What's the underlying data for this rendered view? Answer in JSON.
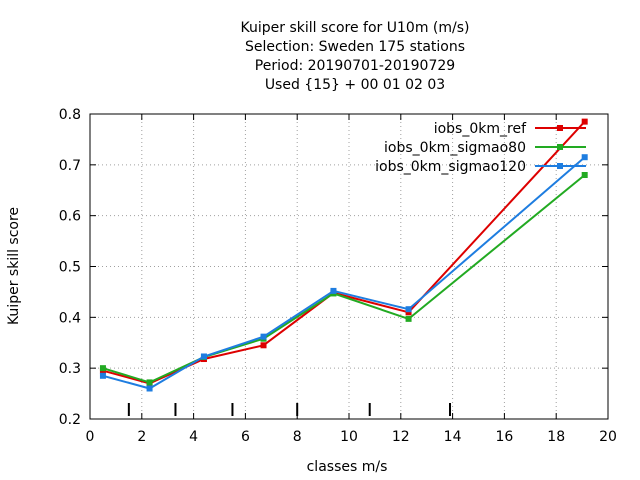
{
  "chart_data": {
    "type": "line",
    "title_lines": [
      "Kuiper skill score  for U10m (m/s)",
      "Selection: Sweden    175 stations",
      "Period: 20190701-20190729",
      "Used {15} + 00 01 02 03"
    ],
    "xlabel": "classes m/s",
    "ylabel": "Kuiper skill score",
    "xlim": [
      0,
      20
    ],
    "ylim": [
      0.2,
      0.8
    ],
    "xticks": [
      0,
      2,
      4,
      6,
      8,
      10,
      12,
      14,
      16,
      18,
      20
    ],
    "yticks": [
      0.2,
      0.3,
      0.4,
      0.5,
      0.6,
      0.7,
      0.8
    ],
    "grid": true,
    "legend_position": "top-right",
    "class_boundaries": [
      1.5,
      3.3,
      5.5,
      8.0,
      10.8,
      13.9
    ],
    "series": [
      {
        "name": "iobs_0km_ref",
        "color": "#dd0000",
        "x": [
          0.5,
          2.3,
          4.4,
          6.7,
          9.4,
          12.3,
          19.1
        ],
        "y": [
          0.295,
          0.27,
          0.318,
          0.345,
          0.448,
          0.41,
          0.785
        ]
      },
      {
        "name": "iobs_0km_sigmao80",
        "color": "#22aa22",
        "x": [
          0.5,
          2.3,
          4.4,
          6.7,
          9.4,
          12.3,
          19.1
        ],
        "y": [
          0.3,
          0.272,
          0.322,
          0.358,
          0.447,
          0.397,
          0.68
        ]
      },
      {
        "name": "iobs_0km_sigmao120",
        "color": "#1e7de0",
        "x": [
          0.5,
          2.3,
          4.4,
          6.7,
          9.4,
          12.3,
          19.1
        ],
        "y": [
          0.285,
          0.26,
          0.323,
          0.362,
          0.452,
          0.416,
          0.715
        ]
      }
    ]
  }
}
